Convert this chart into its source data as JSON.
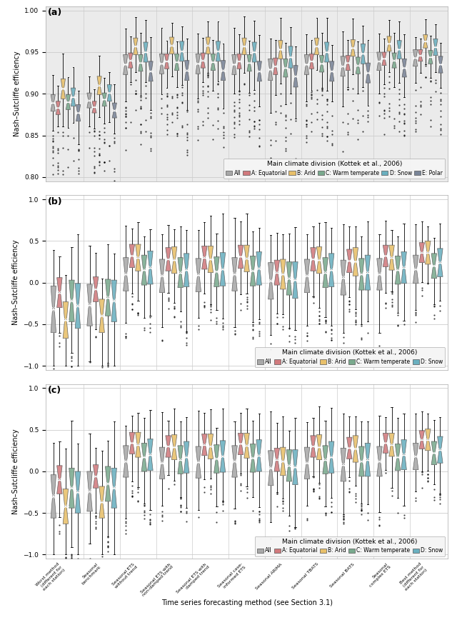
{
  "panel_a": {
    "title": "(a)",
    "ylabel": "Nash–Sutcliffe efficiency",
    "ylim": [
      0.795,
      1.005
    ],
    "yticks": [
      0.8,
      0.85,
      0.9,
      0.95,
      1.0
    ],
    "xlabel": "Main climate division (Kottek et al., 2006)",
    "legend_labels": [
      "All",
      "A: Equatorial",
      "B: Arid",
      "C: Warm temperate",
      "D: Snow",
      "E: Polar"
    ],
    "n_groups": 6,
    "bg_color": "#ebebeb"
  },
  "panel_b": {
    "title": "(b)",
    "ylabel": "Nash–Sutcliffe efficiency",
    "ylim": [
      -1.05,
      1.05
    ],
    "yticks": [
      -1.0,
      -0.5,
      0.0,
      0.5,
      1.0
    ],
    "xlabel": "Main climate division (Kottek et al., 2006)",
    "legend_labels": [
      "All",
      "A: Equatorial",
      "B: Arid",
      "C: Warm temperate",
      "D: Snow"
    ],
    "n_groups": 5,
    "bg_color": "#ffffff"
  },
  "panel_c": {
    "title": "(c)",
    "ylabel": "Nash–Sutcliffe efficiency",
    "ylim": [
      -1.05,
      1.05
    ],
    "yticks": [
      -1.0,
      -0.5,
      0.0,
      0.5,
      1.0
    ],
    "xlabel": "Main climate division (Kottek et al., 2006)",
    "legend_labels": [
      "All",
      "A: Equatorial",
      "B: Arid",
      "C: Warm temperate",
      "D: Snow"
    ],
    "n_groups": 5,
    "bg_color": "#ffffff"
  },
  "method_labels": [
    "Worst method\n(different for\neach station)",
    "Seasonal\nbenchmark",
    "Seasonal ETS\nwithout trend",
    "Seasonal ETS with\nnon-damped trend",
    "Seasonal ETS with\ndamped trend",
    "Seasonal case-\ninformed ETS",
    "Seasonal ARIMA",
    "Seasonal TBATS",
    "Seasonal BATS",
    "Seasonal\ncomplex ETS",
    "Best method\n(different for\neach station)"
  ],
  "colors": {
    "All": "#a8a8a8",
    "A: Equatorial": "#d17a7d",
    "B: Arid": "#e8c06a",
    "C: Warm temperate": "#7aaa8e",
    "D: Snow": "#6ab0c0",
    "E: Polar": "#7a8598"
  },
  "n_methods": 11
}
